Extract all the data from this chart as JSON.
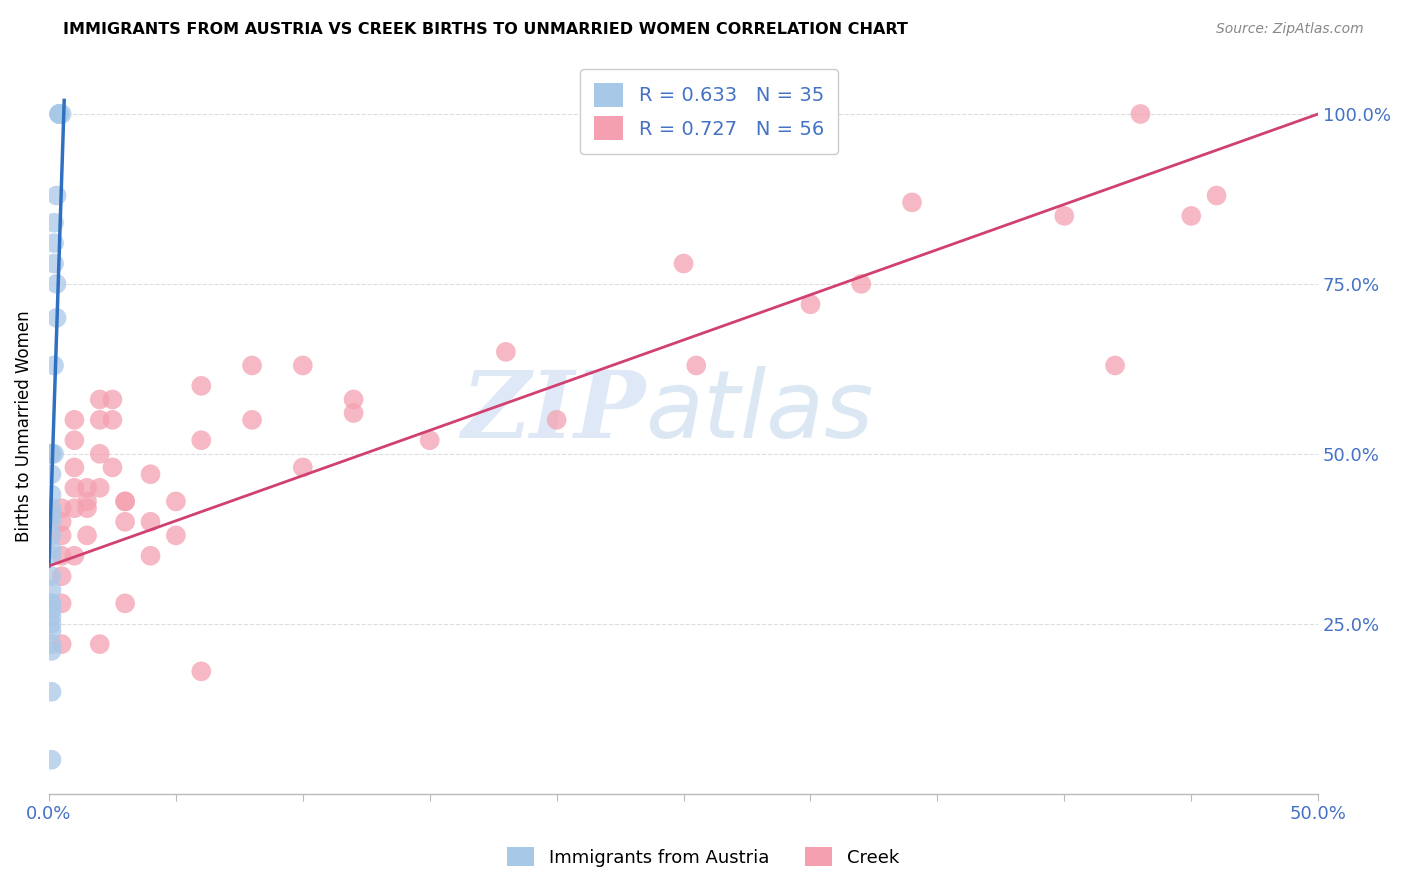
{
  "title": "IMMIGRANTS FROM AUSTRIA VS CREEK BIRTHS TO UNMARRIED WOMEN CORRELATION CHART",
  "source": "Source: ZipAtlas.com",
  "ylabel": "Births to Unmarried Women",
  "legend_label1": "Immigrants from Austria",
  "legend_label2": "Creek",
  "R1": 0.633,
  "N1": 35,
  "R2": 0.727,
  "N2": 56,
  "color_blue": "#a8c8e8",
  "color_pink": "#f4a0b0",
  "color_blue_line": "#3070c0",
  "color_pink_line": "#d04070",
  "watermark_zip": "ZIP",
  "watermark_atlas": "atlas",
  "blue_x": [
    0.004,
    0.004,
    0.004,
    0.005,
    0.003,
    0.002,
    0.002,
    0.002,
    0.003,
    0.003,
    0.002,
    0.001,
    0.001,
    0.001,
    0.002,
    0.001,
    0.001,
    0.001,
    0.001,
    0.001,
    0.001,
    0.001,
    0.001,
    0.001,
    0.001,
    0.001,
    0.001,
    0.001,
    0.001,
    0.001,
    0.001,
    0.001,
    0.001,
    0.001,
    0.001
  ],
  "blue_y": [
    1.0,
    1.0,
    1.0,
    1.0,
    0.88,
    0.84,
    0.81,
    0.78,
    0.75,
    0.7,
    0.63,
    0.5,
    0.5,
    0.5,
    0.5,
    0.47,
    0.44,
    0.42,
    0.41,
    0.4,
    0.38,
    0.36,
    0.35,
    0.32,
    0.3,
    0.28,
    0.28,
    0.27,
    0.26,
    0.25,
    0.24,
    0.22,
    0.21,
    0.15,
    0.05
  ],
  "pink_x": [
    0.005,
    0.005,
    0.005,
    0.005,
    0.005,
    0.005,
    0.005,
    0.01,
    0.01,
    0.01,
    0.01,
    0.01,
    0.01,
    0.015,
    0.015,
    0.015,
    0.015,
    0.02,
    0.02,
    0.02,
    0.02,
    0.02,
    0.025,
    0.025,
    0.025,
    0.03,
    0.03,
    0.03,
    0.03,
    0.04,
    0.04,
    0.04,
    0.05,
    0.05,
    0.06,
    0.06,
    0.06,
    0.08,
    0.08,
    0.1,
    0.1,
    0.12,
    0.12,
    0.15,
    0.18,
    0.2,
    0.25,
    0.255,
    0.3,
    0.32,
    0.34,
    0.4,
    0.42,
    0.43,
    0.45,
    0.46
  ],
  "pink_y": [
    0.42,
    0.4,
    0.38,
    0.35,
    0.32,
    0.28,
    0.22,
    0.55,
    0.52,
    0.48,
    0.45,
    0.42,
    0.35,
    0.45,
    0.43,
    0.42,
    0.38,
    0.58,
    0.55,
    0.5,
    0.45,
    0.22,
    0.58,
    0.55,
    0.48,
    0.43,
    0.43,
    0.4,
    0.28,
    0.47,
    0.4,
    0.35,
    0.43,
    0.38,
    0.6,
    0.52,
    0.18,
    0.63,
    0.55,
    0.63,
    0.48,
    0.58,
    0.56,
    0.52,
    0.65,
    0.55,
    0.78,
    0.63,
    0.72,
    0.75,
    0.87,
    0.85,
    0.63,
    1.0,
    0.85,
    0.88
  ],
  "blue_line_x": [
    0.0,
    0.006
  ],
  "blue_line_y": [
    0.335,
    1.02
  ],
  "pink_line_x": [
    0.0,
    0.5
  ],
  "pink_line_y": [
    0.335,
    1.0
  ],
  "xlim": [
    0.0,
    0.5
  ],
  "ylim": [
    0.0,
    1.08
  ],
  "yticks": [
    0.0,
    0.25,
    0.5,
    0.75,
    1.0
  ],
  "ytick_labels": [
    "",
    "25.0%",
    "50.0%",
    "75.0%",
    "100.0%"
  ],
  "xticks": [
    0.0,
    0.05,
    0.1,
    0.15,
    0.2,
    0.25,
    0.3,
    0.35,
    0.4,
    0.45,
    0.5
  ]
}
